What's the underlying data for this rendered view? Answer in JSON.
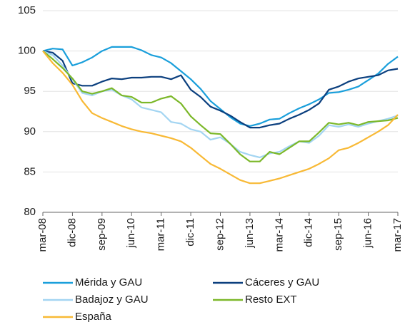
{
  "chart_data": {
    "type": "line",
    "categories": [
      "mar-08",
      null,
      null,
      "dic-08",
      null,
      null,
      "sep-09",
      null,
      null,
      "jun-10",
      null,
      null,
      "mar-11",
      null,
      null,
      "dic-11",
      null,
      null,
      "sep-12",
      null,
      null,
      "jun-13",
      null,
      null,
      "mar-14",
      null,
      null,
      "dic-14",
      null,
      null,
      "sep-15",
      null,
      null,
      "jun-16",
      null,
      null,
      "mar-17"
    ],
    "series": [
      {
        "name": "Mérida y GAU",
        "color": "#1a9fdb",
        "values": [
          100,
          100.3,
          100.2,
          98.2,
          98.6,
          99.2,
          100,
          100.5,
          100.5,
          100.5,
          100.1,
          99.5,
          99.2,
          98.5,
          97.5,
          96.5,
          95.3,
          93.8,
          92.8,
          91.8,
          91.0,
          90.7,
          91.0,
          91.5,
          91.6,
          92.3,
          92.9,
          93.4,
          94.0,
          94.8,
          94.9,
          95.2,
          95.6,
          96.4,
          97.2,
          98.4,
          99.3
        ]
      },
      {
        "name": "Cáceres y GAU",
        "color": "#0b3f7e",
        "values": [
          100,
          99.8,
          98.8,
          96,
          95.7,
          95.7,
          96.2,
          96.6,
          96.5,
          96.7,
          96.7,
          96.8,
          96.8,
          96.5,
          97,
          95.2,
          94.3,
          93.1,
          92.6,
          92,
          91.2,
          90.5,
          90.5,
          90.8,
          91,
          91.6,
          92.1,
          92.7,
          93.5,
          95.2,
          95.6,
          96.2,
          96.6,
          96.8,
          97,
          97.6,
          97.8
        ]
      },
      {
        "name": "Badajoz y GAU",
        "color": "#a3d5f2",
        "values": [
          100,
          99.5,
          98.2,
          96.5,
          94.8,
          94.5,
          95,
          95.2,
          94.5,
          94,
          93,
          92.7,
          92.4,
          91.2,
          91,
          90.3,
          90,
          89,
          89.3,
          88.5,
          87.5,
          87.1,
          86.8,
          87.3,
          87.5,
          88.2,
          88.8,
          88.6,
          89.5,
          90.8,
          90.6,
          90.9,
          90.6,
          91,
          91.3,
          91.6,
          92
        ]
      },
      {
        "name": "Resto EXT",
        "color": "#7cb82a",
        "values": [
          100,
          99,
          97.9,
          96.6,
          95,
          94.7,
          95,
          95.4,
          94.5,
          94.3,
          93.6,
          93.6,
          94.1,
          94.4,
          93.5,
          91.9,
          90.8,
          89.8,
          89.7,
          88.5,
          87.2,
          86.3,
          86.3,
          87.5,
          87.2,
          88,
          88.8,
          88.8,
          89.9,
          91.1,
          90.9,
          91.1,
          90.8,
          91.2,
          91.3,
          91.4,
          91.7
        ]
      },
      {
        "name": "España",
        "color": "#f8b935",
        "values": [
          100,
          98.5,
          97.3,
          95.8,
          93.8,
          92.3,
          91.7,
          91.2,
          90.7,
          90.3,
          90,
          89.8,
          89.5,
          89.2,
          88.8,
          88,
          87,
          86,
          85.4,
          84.7,
          84,
          83.6,
          83.6,
          83.9,
          84.2,
          84.6,
          85,
          85.4,
          86,
          86.7,
          87.7,
          88,
          88.6,
          89.3,
          90,
          90.8,
          92.1
        ]
      }
    ],
    "ylim": [
      80,
      105
    ],
    "yticks": [
      80,
      85,
      90,
      95,
      100,
      105
    ],
    "grid": true,
    "legend": "bottom"
  }
}
